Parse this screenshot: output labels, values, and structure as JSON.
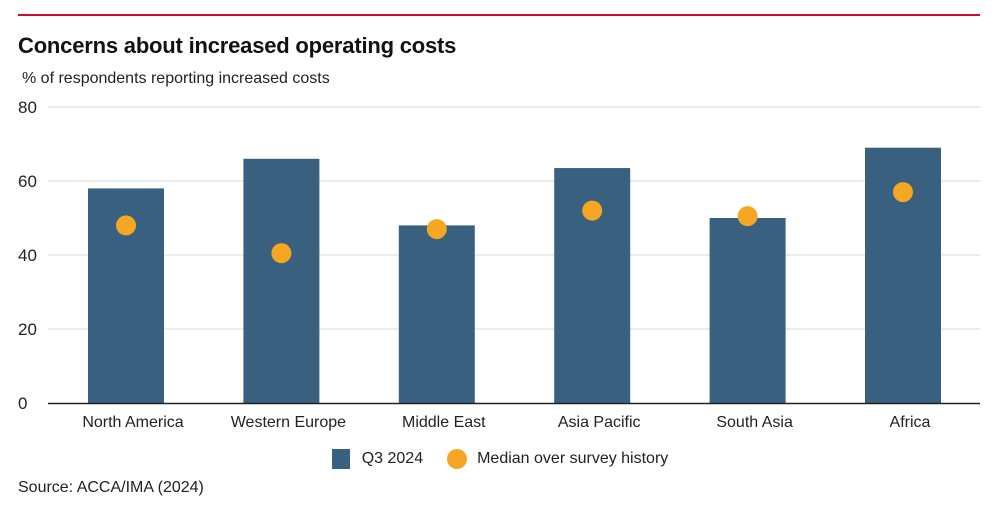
{
  "chart_data": {
    "type": "bar",
    "title": "Concerns about increased operating costs",
    "subtitle": "% of respondents reporting increased costs",
    "xlabel": "",
    "ylabel": "% of respondents reporting increased costs",
    "categories": [
      "North America",
      "Western Europe",
      "Middle East",
      "Asia Pacific",
      "South Asia",
      "Africa"
    ],
    "series": [
      {
        "name": "Q3 2024",
        "mark": "bar",
        "color": "#3a6080",
        "values": [
          58,
          66,
          48,
          63.5,
          50,
          69
        ]
      },
      {
        "name": "Median over survey history",
        "mark": "dot",
        "color": "#f5a623",
        "values": [
          48,
          40.5,
          47,
          52,
          50.5,
          57
        ]
      }
    ],
    "ylim": [
      0,
      80
    ],
    "yticks": [
      0,
      20,
      40,
      60,
      80
    ],
    "grid": true,
    "legend_position": "bottom-center",
    "source": "Source: ACCA/IMA (2024)"
  },
  "colors": {
    "accent_rule": "#c8102e",
    "bar": "#3a6080",
    "dot": "#f5a623",
    "grid": "#d9d9d9",
    "axis": "#222222"
  }
}
